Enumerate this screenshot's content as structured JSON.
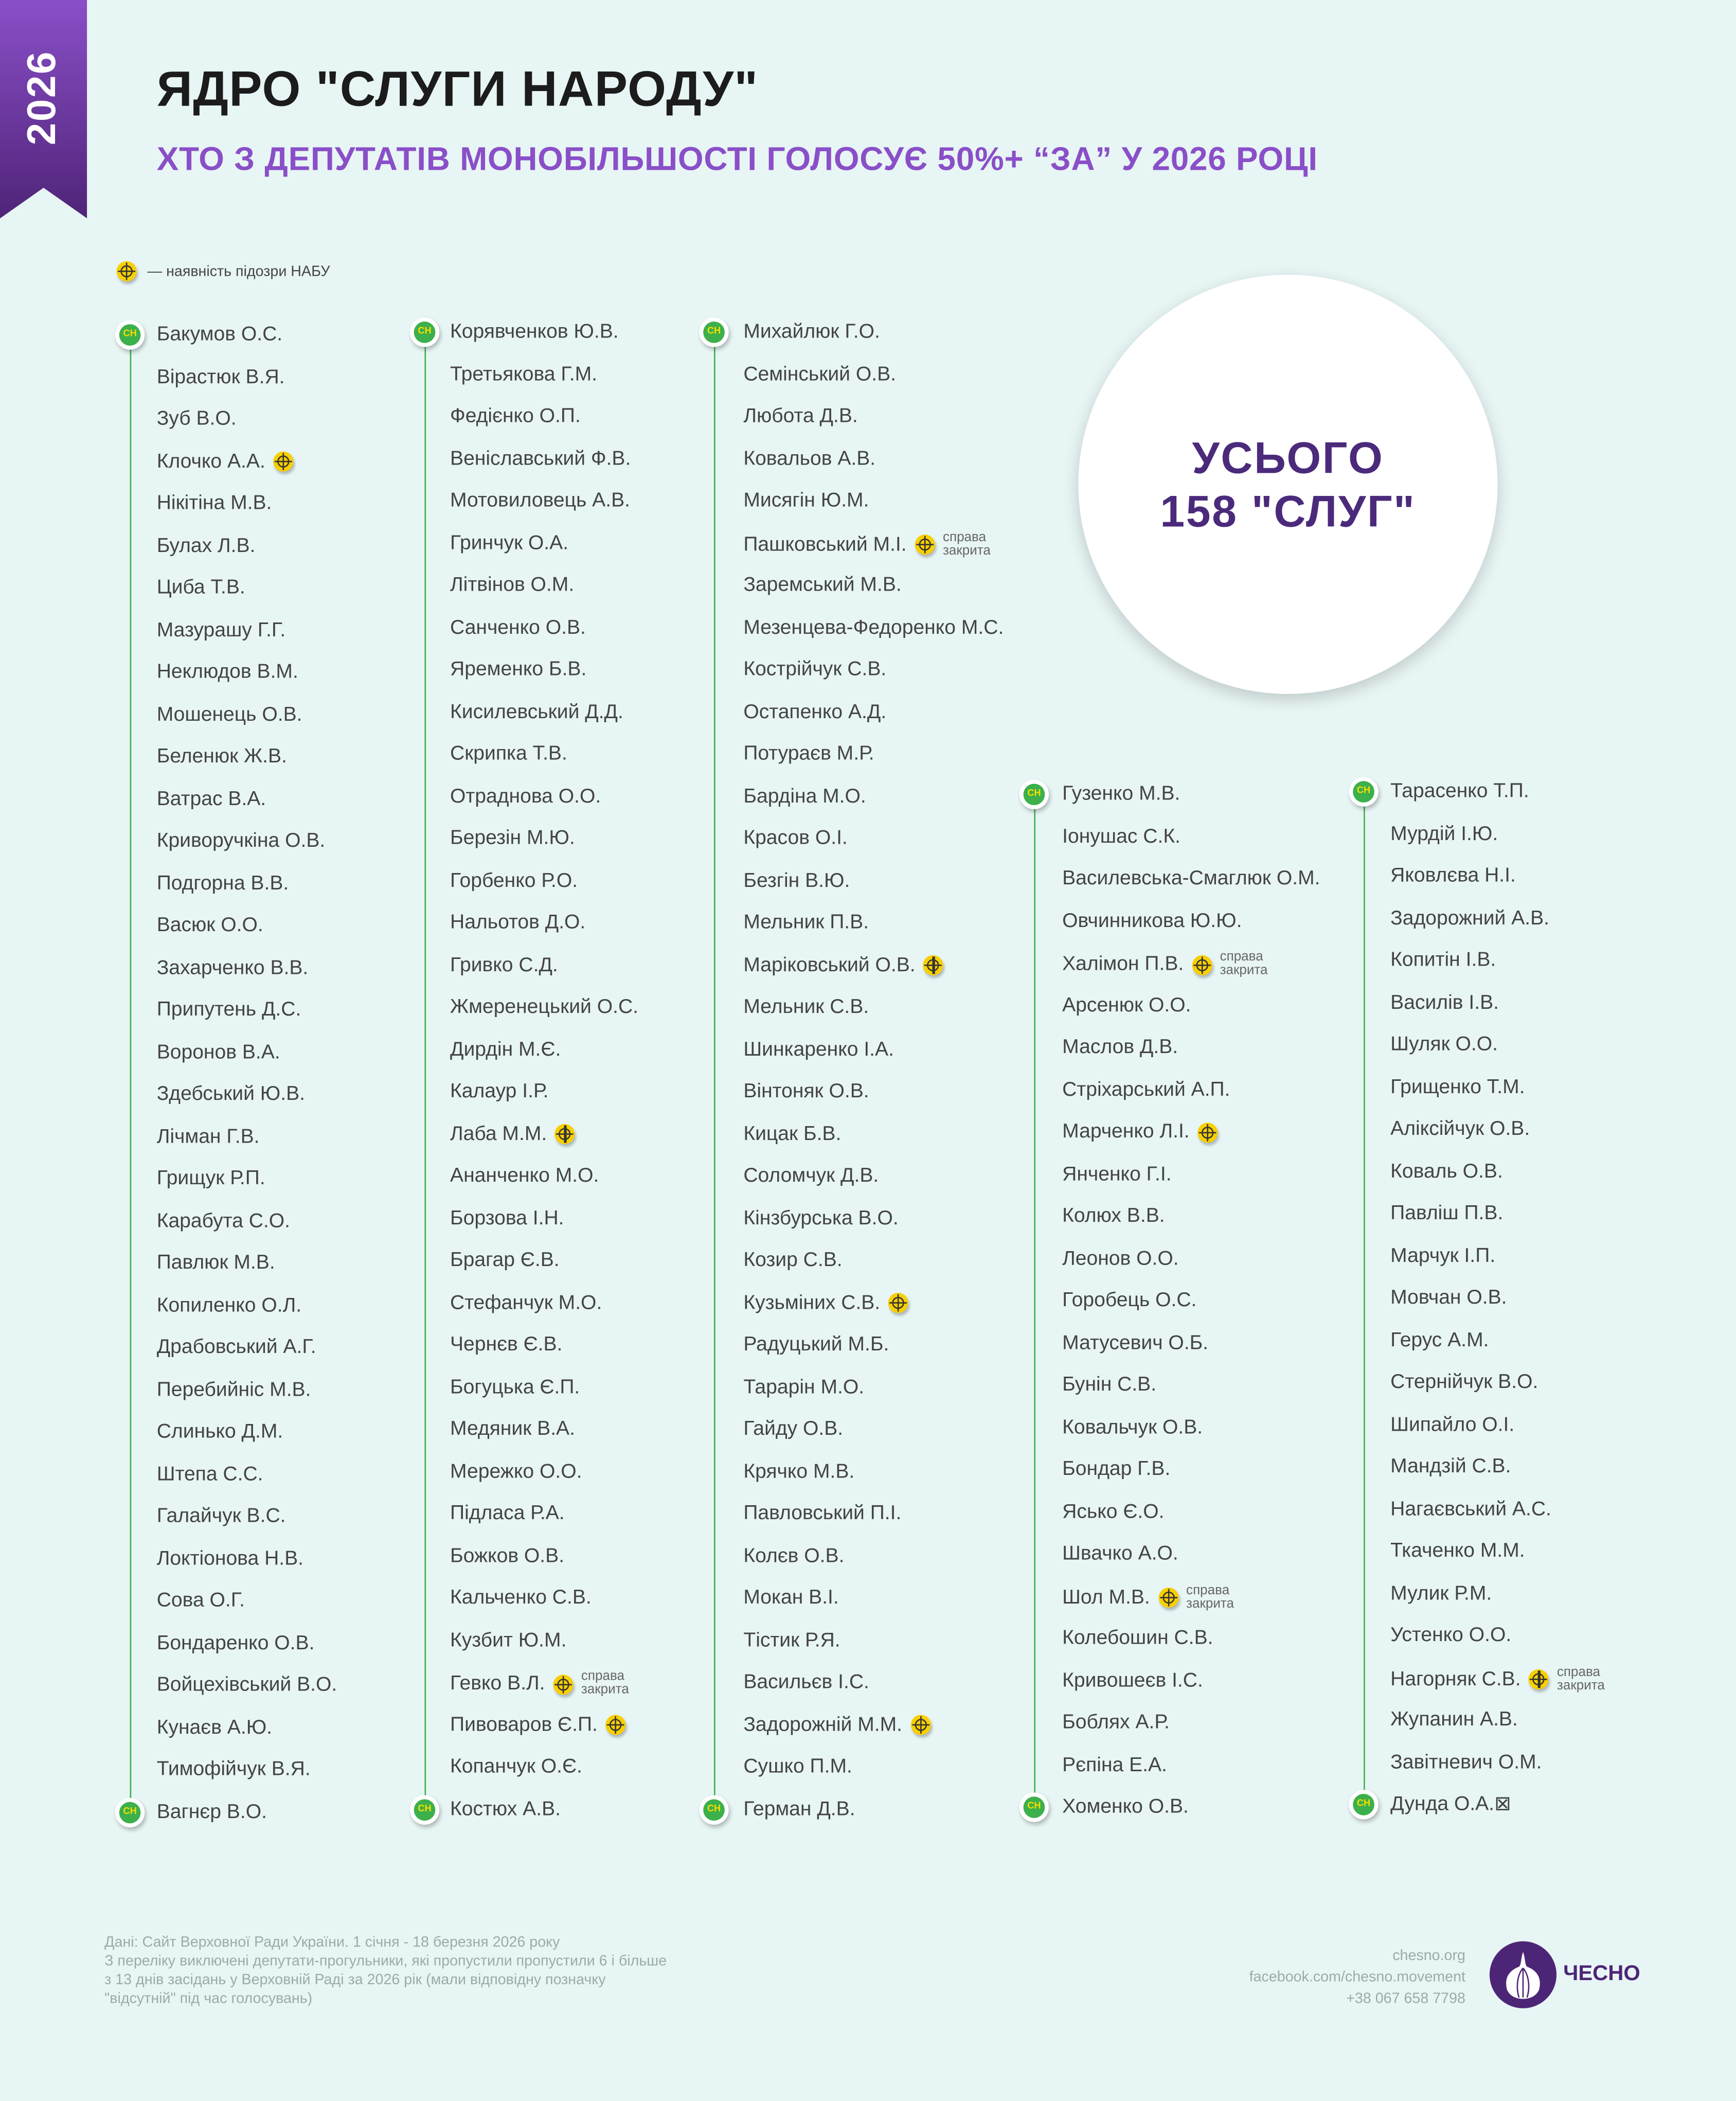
{
  "ribbon": {
    "year": "2026"
  },
  "header": {
    "title": "ЯДРО \"СЛУГИ НАРОДУ\"",
    "subtitle": "ХТО З ДЕПУТАТІВ МОНОБІЛЬШОСТІ ГОЛОСУЄ 50%+ “ЗА” У 2026 РОЦІ"
  },
  "legend": {
    "icon": "nabu-target-icon",
    "text": "— наявність підозри НАБУ"
  },
  "marker_label": "СН",
  "closed_label": [
    "справа",
    "закрита"
  ],
  "colors": {
    "accent": "#8a4fc8",
    "dark_purple": "#4b2a7b",
    "marker_green": "#3bb04b",
    "nabu_yellow": "#f8cf00",
    "background": "#e7f5f4"
  },
  "total": {
    "line1": "УСЬОГО",
    "line2": "158 \"СЛУГ\""
  },
  "columns": [
    {
      "items": [
        {
          "name": "Бакумов О.С."
        },
        {
          "name": "Вірастюк В.Я."
        },
        {
          "name": "Зуб В.О."
        },
        {
          "name": "Клочко А.А.",
          "nabu": true
        },
        {
          "name": "Нікітіна М.В."
        },
        {
          "name": "Булах Л.В."
        },
        {
          "name": "Циба Т.В."
        },
        {
          "name": "Мазурашу Г.Г."
        },
        {
          "name": "Неклюдов В.М."
        },
        {
          "name": "Мошенець О.В."
        },
        {
          "name": "Беленюк Ж.В."
        },
        {
          "name": "Ватрас В.А."
        },
        {
          "name": "Криворучкіна О.В."
        },
        {
          "name": "Подгорна В.В."
        },
        {
          "name": "Васюк О.О."
        },
        {
          "name": "Захарченко В.В."
        },
        {
          "name": "Припутень Д.С."
        },
        {
          "name": "Воронов В.А."
        },
        {
          "name": "Здебський Ю.В."
        },
        {
          "name": "Лічман Г.В."
        },
        {
          "name": "Грищук Р.П."
        },
        {
          "name": "Карабута С.О."
        },
        {
          "name": "Павлюк М.В."
        },
        {
          "name": "Копиленко О.Л."
        },
        {
          "name": "Драбовський А.Г."
        },
        {
          "name": "Перебийніс М.В."
        },
        {
          "name": "Слинько Д.М."
        },
        {
          "name": "Штепа С.С."
        },
        {
          "name": "Галайчук В.С."
        },
        {
          "name": "Локтіонова Н.В."
        },
        {
          "name": "Сова О.Г."
        },
        {
          "name": "Бондаренко О.В."
        },
        {
          "name": "Войцехівський В.О."
        },
        {
          "name": "Кунаєв А.Ю."
        },
        {
          "name": "Тимофійчук В.Я."
        },
        {
          "name": "Вагнєр В.О."
        }
      ]
    },
    {
      "items": [
        {
          "name": "Корявченков Ю.В."
        },
        {
          "name": "Третьякова Г.М."
        },
        {
          "name": "Федієнко О.П."
        },
        {
          "name": "Веніславський Ф.В."
        },
        {
          "name": "Мотовиловець А.В."
        },
        {
          "name": "Гринчук О.А."
        },
        {
          "name": "Літвінов О.М."
        },
        {
          "name": "Санченко О.В."
        },
        {
          "name": "Яременко Б.В."
        },
        {
          "name": "Кисилевський Д.Д."
        },
        {
          "name": "Скрипка Т.В."
        },
        {
          "name": "Отраднова О.О."
        },
        {
          "name": "Березін М.Ю."
        },
        {
          "name": "Горбенко Р.О."
        },
        {
          "name": "Нальотов Д.О."
        },
        {
          "name": "Гривко С.Д."
        },
        {
          "name": "Жмеренецький О.С."
        },
        {
          "name": "Дирдін М.Є."
        },
        {
          "name": "Калаур І.Р."
        },
        {
          "name": "Лаба М.М.",
          "nabu": true
        },
        {
          "name": "Ананченко М.О."
        },
        {
          "name": "Борзова І.Н."
        },
        {
          "name": "Брагар Є.В."
        },
        {
          "name": "Стефанчук М.О."
        },
        {
          "name": "Чернєв Є.В."
        },
        {
          "name": "Богуцька Є.П."
        },
        {
          "name": "Медяник В.А."
        },
        {
          "name": "Мережко О.О."
        },
        {
          "name": "Підласа Р.А."
        },
        {
          "name": "Божков О.В."
        },
        {
          "name": "Кальченко С.В."
        },
        {
          "name": "Кузбит Ю.М."
        },
        {
          "name": "Гевко В.Л.",
          "nabu": true,
          "closed": true
        },
        {
          "name": "Пивоваров Є.П.",
          "nabu": true
        },
        {
          "name": "Копанчук О.Є."
        },
        {
          "name": "Костюх А.В."
        }
      ]
    },
    {
      "items": [
        {
          "name": "Михайлюк Г.О."
        },
        {
          "name": "Семінський О.В."
        },
        {
          "name": "Любота Д.В."
        },
        {
          "name": "Ковальов А.В."
        },
        {
          "name": "Мисягін Ю.М."
        },
        {
          "name": "Пашковський М.І.",
          "nabu": true,
          "closed": true
        },
        {
          "name": "Заремський М.В."
        },
        {
          "name": "Мезенцева-Федоренко М.С."
        },
        {
          "name": "Кострійчук С.В."
        },
        {
          "name": "Остапенко А.Д."
        },
        {
          "name": "Потураєв М.Р."
        },
        {
          "name": "Бардіна М.О."
        },
        {
          "name": "Красов О.І."
        },
        {
          "name": "Безгін В.Ю."
        },
        {
          "name": "Мельник П.В."
        },
        {
          "name": "Маріковський О.В.",
          "nabu": true
        },
        {
          "name": "Мельник С.В."
        },
        {
          "name": "Шинкаренко І.А."
        },
        {
          "name": "Вінтоняк О.В."
        },
        {
          "name": "Кицак Б.В."
        },
        {
          "name": "Соломчук Д.В."
        },
        {
          "name": "Кінзбурська В.О."
        },
        {
          "name": "Козир С.В."
        },
        {
          "name": "Кузьміних С.В.",
          "nabu": true
        },
        {
          "name": "Радуцький М.Б."
        },
        {
          "name": "Тарарін М.О."
        },
        {
          "name": "Гайду О.В."
        },
        {
          "name": "Крячко М.В."
        },
        {
          "name": "Павловський П.І."
        },
        {
          "name": "Колєв О.В."
        },
        {
          "name": "Мокан В.І."
        },
        {
          "name": "Тістик Р.Я."
        },
        {
          "name": "Васильєв І.С."
        },
        {
          "name": "Задорожній М.М.",
          "nabu": true
        },
        {
          "name": "Сушко П.М."
        },
        {
          "name": "Герман Д.В."
        }
      ]
    },
    {
      "items": [
        {
          "name": "Гузенко М.В."
        },
        {
          "name": "Іонушас С.К."
        },
        {
          "name": "Василевська-Смаглюк О.М."
        },
        {
          "name": "Овчинникова Ю.Ю."
        },
        {
          "name": "Халімон П.В.",
          "nabu": true,
          "closed": true
        },
        {
          "name": "Арсенюк О.О."
        },
        {
          "name": "Маслов Д.В."
        },
        {
          "name": "Стріхарський А.П."
        },
        {
          "name": "Марченко Л.І.",
          "nabu": true
        },
        {
          "name": "Янченко Г.І."
        },
        {
          "name": "Колюх В.В."
        },
        {
          "name": "Леонов О.О."
        },
        {
          "name": "Горобець О.С."
        },
        {
          "name": "Матусевич О.Б."
        },
        {
          "name": "Бунін С.В."
        },
        {
          "name": "Ковальчук О.В."
        },
        {
          "name": "Бондар Г.В."
        },
        {
          "name": "Ясько Є.О."
        },
        {
          "name": "Швачко А.О."
        },
        {
          "name": "Шол М.В.",
          "nabu": true,
          "closed": true
        },
        {
          "name": "Колебошин С.В."
        },
        {
          "name": "Кривошеєв І.С."
        },
        {
          "name": "Боблях А.Р."
        },
        {
          "name": "Рєпіна Е.А."
        },
        {
          "name": "Хоменко О.В."
        }
      ]
    },
    {
      "items": [
        {
          "name": "Тарасенко Т.П."
        },
        {
          "name": "Мурдій І.Ю."
        },
        {
          "name": "Яковлєва Н.І."
        },
        {
          "name": "Задорожний А.В."
        },
        {
          "name": "Копитін І.В."
        },
        {
          "name": "Василів І.В."
        },
        {
          "name": "Шуляк О.О."
        },
        {
          "name": "Грищенко Т.М."
        },
        {
          "name": "Аліксійчук О.В."
        },
        {
          "name": "Коваль О.В."
        },
        {
          "name": "Павліш П.В."
        },
        {
          "name": "Марчук І.П."
        },
        {
          "name": "Мовчан О.В."
        },
        {
          "name": "Герус А.М."
        },
        {
          "name": "Стернійчук В.О."
        },
        {
          "name": "Шипайло О.І."
        },
        {
          "name": "Мандзій С.В."
        },
        {
          "name": "Нагаєвський А.С."
        },
        {
          "name": "Ткаченко М.М."
        },
        {
          "name": "Мулик Р.М."
        },
        {
          "name": "Устенко О.О."
        },
        {
          "name": "Нагорняк С.В.",
          "nabu": true,
          "closed": true
        },
        {
          "name": "Жупанин А.В."
        },
        {
          "name": "Завітневич О.М."
        },
        {
          "name": "Дунда О.А.⊠"
        }
      ]
    }
  ],
  "footer": {
    "source": [
      "Дані: Сайт Верховної Ради України. 1 січня - 18 березня 2026 року",
      "З переліку виключені депутати-прогульники, які пропустили пропустили 6 і більше з 13 днів засідань у Верховній Раді за 2026 рік (мали відповідну позначку \"відсутній\" під час голосувань)"
    ],
    "contacts": [
      "chesno.org",
      "facebook.com/chesno.movement",
      "+38 067 658 7798"
    ],
    "logo_text": "ЧЕСНО"
  }
}
